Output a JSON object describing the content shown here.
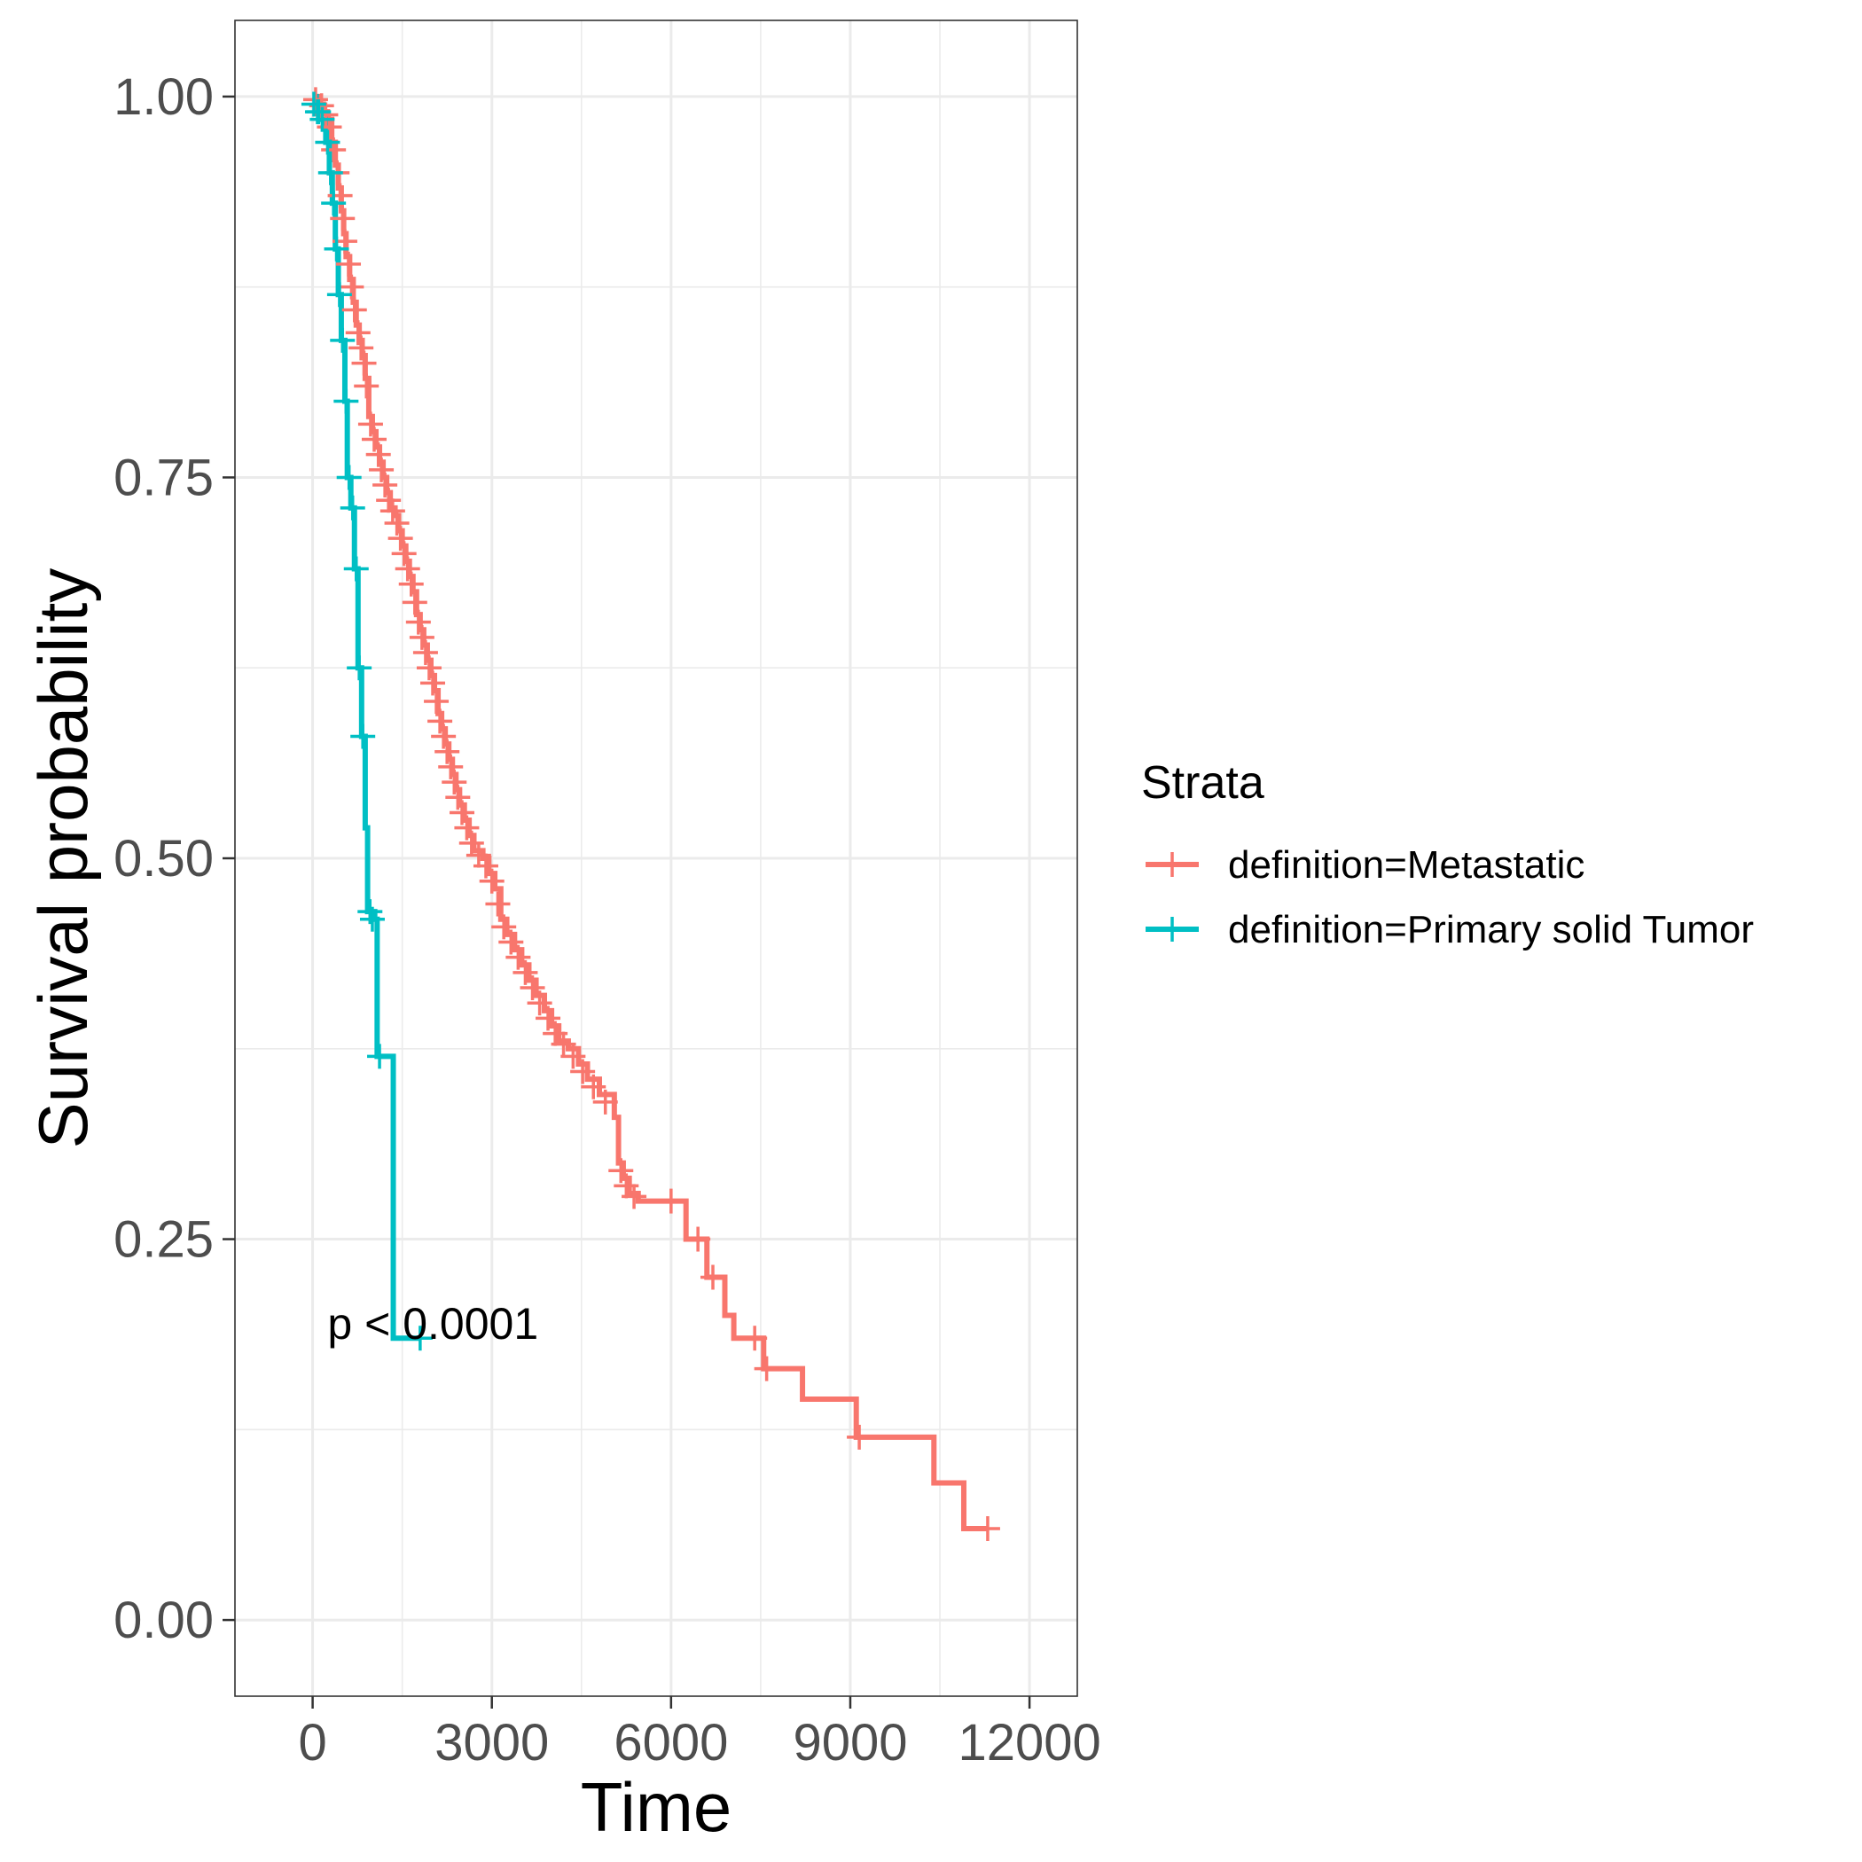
{
  "chart_data": {
    "type": "line",
    "subtype": "kaplan-meier",
    "xlabel": "Time",
    "ylabel": "Survival probability",
    "xlim": [
      -1300,
      12800
    ],
    "ylim": [
      -0.05,
      1.05
    ],
    "xticks": [
      0,
      3000,
      6000,
      9000,
      12000
    ],
    "xtick_labels": [
      "0",
      "3000",
      "6000",
      "9000",
      "12000"
    ],
    "yticks": [
      0,
      0.25,
      0.5,
      0.75,
      1.0
    ],
    "ytick_labels": [
      "0.00",
      "0.25",
      "0.50",
      "0.75",
      "1.00"
    ],
    "grid": true,
    "legend": {
      "title": "Strata",
      "position": "right"
    },
    "annotation": {
      "text": "p < 0.0001",
      "x": 250,
      "y": 0.195
    },
    "series": [
      {
        "name": "definition=Metastatic",
        "color": "#F8766D",
        "steps": [
          [
            0,
            1.0
          ],
          [
            120,
            0.995
          ],
          [
            180,
            0.99
          ],
          [
            250,
            0.985
          ],
          [
            320,
            0.97
          ],
          [
            380,
            0.955
          ],
          [
            430,
            0.94
          ],
          [
            480,
            0.925
          ],
          [
            520,
            0.91
          ],
          [
            560,
            0.895
          ],
          [
            620,
            0.88
          ],
          [
            680,
            0.865
          ],
          [
            730,
            0.85
          ],
          [
            780,
            0.84
          ],
          [
            830,
            0.83
          ],
          [
            880,
            0.815
          ],
          [
            940,
            0.79
          ],
          [
            1000,
            0.78
          ],
          [
            1060,
            0.77
          ],
          [
            1120,
            0.76
          ],
          [
            1180,
            0.75
          ],
          [
            1240,
            0.74
          ],
          [
            1300,
            0.73
          ],
          [
            1380,
            0.725
          ],
          [
            1440,
            0.715
          ],
          [
            1500,
            0.705
          ],
          [
            1560,
            0.695
          ],
          [
            1620,
            0.685
          ],
          [
            1680,
            0.675
          ],
          [
            1740,
            0.66
          ],
          [
            1800,
            0.65
          ],
          [
            1860,
            0.64
          ],
          [
            1920,
            0.63
          ],
          [
            1980,
            0.62
          ],
          [
            2040,
            0.61
          ],
          [
            2100,
            0.595
          ],
          [
            2160,
            0.585
          ],
          [
            2220,
            0.575
          ],
          [
            2280,
            0.565
          ],
          [
            2340,
            0.555
          ],
          [
            2400,
            0.545
          ],
          [
            2460,
            0.535
          ],
          [
            2540,
            0.525
          ],
          [
            2620,
            0.515
          ],
          [
            2700,
            0.505
          ],
          [
            2850,
            0.5
          ],
          [
            2950,
            0.49
          ],
          [
            3050,
            0.48
          ],
          [
            3150,
            0.46
          ],
          [
            3250,
            0.45
          ],
          [
            3380,
            0.44
          ],
          [
            3500,
            0.43
          ],
          [
            3620,
            0.42
          ],
          [
            3740,
            0.41
          ],
          [
            3880,
            0.4
          ],
          [
            4000,
            0.39
          ],
          [
            4120,
            0.38
          ],
          [
            4280,
            0.375
          ],
          [
            4450,
            0.365
          ],
          [
            4600,
            0.355
          ],
          [
            4800,
            0.345
          ],
          [
            5050,
            0.33
          ],
          [
            5120,
            0.3
          ],
          [
            5200,
            0.29
          ],
          [
            5300,
            0.28
          ],
          [
            5450,
            0.275
          ],
          [
            6250,
            0.25
          ],
          [
            6600,
            0.225
          ],
          [
            6900,
            0.2
          ],
          [
            7050,
            0.185
          ],
          [
            7550,
            0.165
          ],
          [
            8200,
            0.145
          ],
          [
            9100,
            0.12
          ],
          [
            10400,
            0.09
          ],
          [
            10900,
            0.06
          ],
          [
            11300,
            0.06
          ]
        ],
        "censors": [
          [
            50,
            0.998
          ],
          [
            150,
            0.994
          ],
          [
            220,
            0.988
          ],
          [
            280,
            0.98
          ],
          [
            350,
            0.965
          ],
          [
            410,
            0.95
          ],
          [
            460,
            0.935
          ],
          [
            500,
            0.92
          ],
          [
            540,
            0.905
          ],
          [
            600,
            0.89
          ],
          [
            650,
            0.875
          ],
          [
            700,
            0.86
          ],
          [
            760,
            0.845
          ],
          [
            810,
            0.835
          ],
          [
            860,
            0.825
          ],
          [
            900,
            0.81
          ],
          [
            970,
            0.785
          ],
          [
            1030,
            0.775
          ],
          [
            1100,
            0.765
          ],
          [
            1150,
            0.755
          ],
          [
            1210,
            0.745
          ],
          [
            1270,
            0.735
          ],
          [
            1340,
            0.728
          ],
          [
            1410,
            0.72
          ],
          [
            1470,
            0.71
          ],
          [
            1530,
            0.7
          ],
          [
            1590,
            0.69
          ],
          [
            1650,
            0.68
          ],
          [
            1710,
            0.668
          ],
          [
            1770,
            0.655
          ],
          [
            1830,
            0.645
          ],
          [
            1890,
            0.635
          ],
          [
            1950,
            0.625
          ],
          [
            2010,
            0.615
          ],
          [
            2070,
            0.603
          ],
          [
            2130,
            0.59
          ],
          [
            2190,
            0.58
          ],
          [
            2250,
            0.57
          ],
          [
            2310,
            0.56
          ],
          [
            2370,
            0.55
          ],
          [
            2430,
            0.54
          ],
          [
            2500,
            0.53
          ],
          [
            2580,
            0.52
          ],
          [
            2660,
            0.51
          ],
          [
            2780,
            0.502
          ],
          [
            2900,
            0.495
          ],
          [
            3000,
            0.485
          ],
          [
            3100,
            0.47
          ],
          [
            3200,
            0.455
          ],
          [
            3320,
            0.445
          ],
          [
            3440,
            0.435
          ],
          [
            3560,
            0.425
          ],
          [
            3680,
            0.415
          ],
          [
            3800,
            0.405
          ],
          [
            3940,
            0.395
          ],
          [
            4060,
            0.385
          ],
          [
            4200,
            0.378
          ],
          [
            4360,
            0.37
          ],
          [
            4520,
            0.36
          ],
          [
            4700,
            0.35
          ],
          [
            4900,
            0.34
          ],
          [
            5160,
            0.295
          ],
          [
            5250,
            0.285
          ],
          [
            5380,
            0.278
          ],
          [
            6000,
            0.275
          ],
          [
            6450,
            0.25
          ],
          [
            6700,
            0.225
          ],
          [
            7400,
            0.185
          ],
          [
            7600,
            0.165
          ],
          [
            9150,
            0.12
          ],
          [
            11300,
            0.06
          ]
        ]
      },
      {
        "name": "definition=Primary solid Tumor",
        "color": "#00BFC4",
        "steps": [
          [
            0,
            1.0
          ],
          [
            60,
            0.99
          ],
          [
            120,
            0.985
          ],
          [
            220,
            0.97
          ],
          [
            280,
            0.95
          ],
          [
            330,
            0.93
          ],
          [
            380,
            0.9
          ],
          [
            430,
            0.87
          ],
          [
            480,
            0.84
          ],
          [
            540,
            0.8
          ],
          [
            580,
            0.75
          ],
          [
            640,
            0.73
          ],
          [
            700,
            0.69
          ],
          [
            760,
            0.625
          ],
          [
            820,
            0.58
          ],
          [
            880,
            0.52
          ],
          [
            920,
            0.465
          ],
          [
            1040,
            0.46
          ],
          [
            1080,
            0.37
          ],
          [
            1350,
            0.185
          ],
          [
            1800,
            0.185
          ]
        ],
        "censors": [
          [
            20,
            0.995
          ],
          [
            80,
            0.99
          ],
          [
            100,
            0.99
          ],
          [
            160,
            0.985
          ],
          [
            250,
            0.97
          ],
          [
            300,
            0.95
          ],
          [
            350,
            0.93
          ],
          [
            400,
            0.9
          ],
          [
            450,
            0.87
          ],
          [
            500,
            0.84
          ],
          [
            560,
            0.8
          ],
          [
            610,
            0.75
          ],
          [
            670,
            0.73
          ],
          [
            730,
            0.69
          ],
          [
            780,
            0.625
          ],
          [
            840,
            0.58
          ],
          [
            960,
            0.465
          ],
          [
            1000,
            0.46
          ],
          [
            1120,
            0.37
          ],
          [
            1800,
            0.185
          ]
        ]
      }
    ]
  }
}
